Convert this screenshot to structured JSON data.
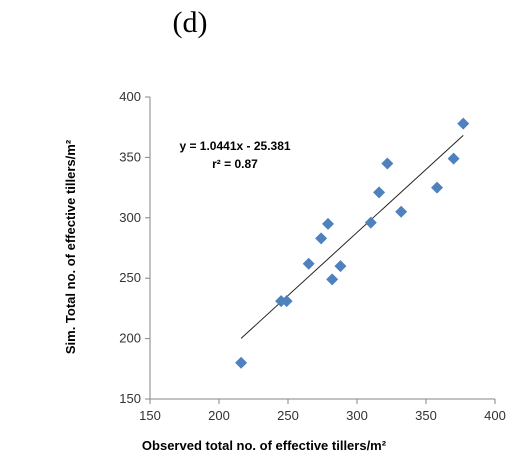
{
  "panel_label": "(d)",
  "chart_data": {
    "type": "scatter",
    "title": "",
    "xlabel": "Observed total no. of effective tillers/m²",
    "ylabel": "Sim. Total no. of effective tillers/m²",
    "xlim": [
      150,
      400
    ],
    "ylim": [
      150,
      400
    ],
    "xticks": [
      150,
      200,
      250,
      300,
      350,
      400
    ],
    "yticks": [
      150,
      200,
      250,
      300,
      350,
      400
    ],
    "grid": false,
    "legend": "none",
    "marker": "diamond",
    "marker_color": "#4F81BD",
    "points": [
      {
        "x": 216,
        "y": 180
      },
      {
        "x": 245,
        "y": 231
      },
      {
        "x": 249,
        "y": 231
      },
      {
        "x": 265,
        "y": 262
      },
      {
        "x": 274,
        "y": 283
      },
      {
        "x": 279,
        "y": 295
      },
      {
        "x": 282,
        "y": 249
      },
      {
        "x": 288,
        "y": 260
      },
      {
        "x": 310,
        "y": 296
      },
      {
        "x": 316,
        "y": 321
      },
      {
        "x": 322,
        "y": 345
      },
      {
        "x": 332,
        "y": 305
      },
      {
        "x": 358,
        "y": 325
      },
      {
        "x": 370,
        "y": 349
      },
      {
        "x": 377,
        "y": 378
      }
    ],
    "trendline": {
      "slope": 1.0441,
      "intercept": -25.381,
      "x_start": 216,
      "x_end": 377,
      "equation_label": "y = 1.0441x - 25.381",
      "r2_label": "r² = 0.87"
    }
  }
}
